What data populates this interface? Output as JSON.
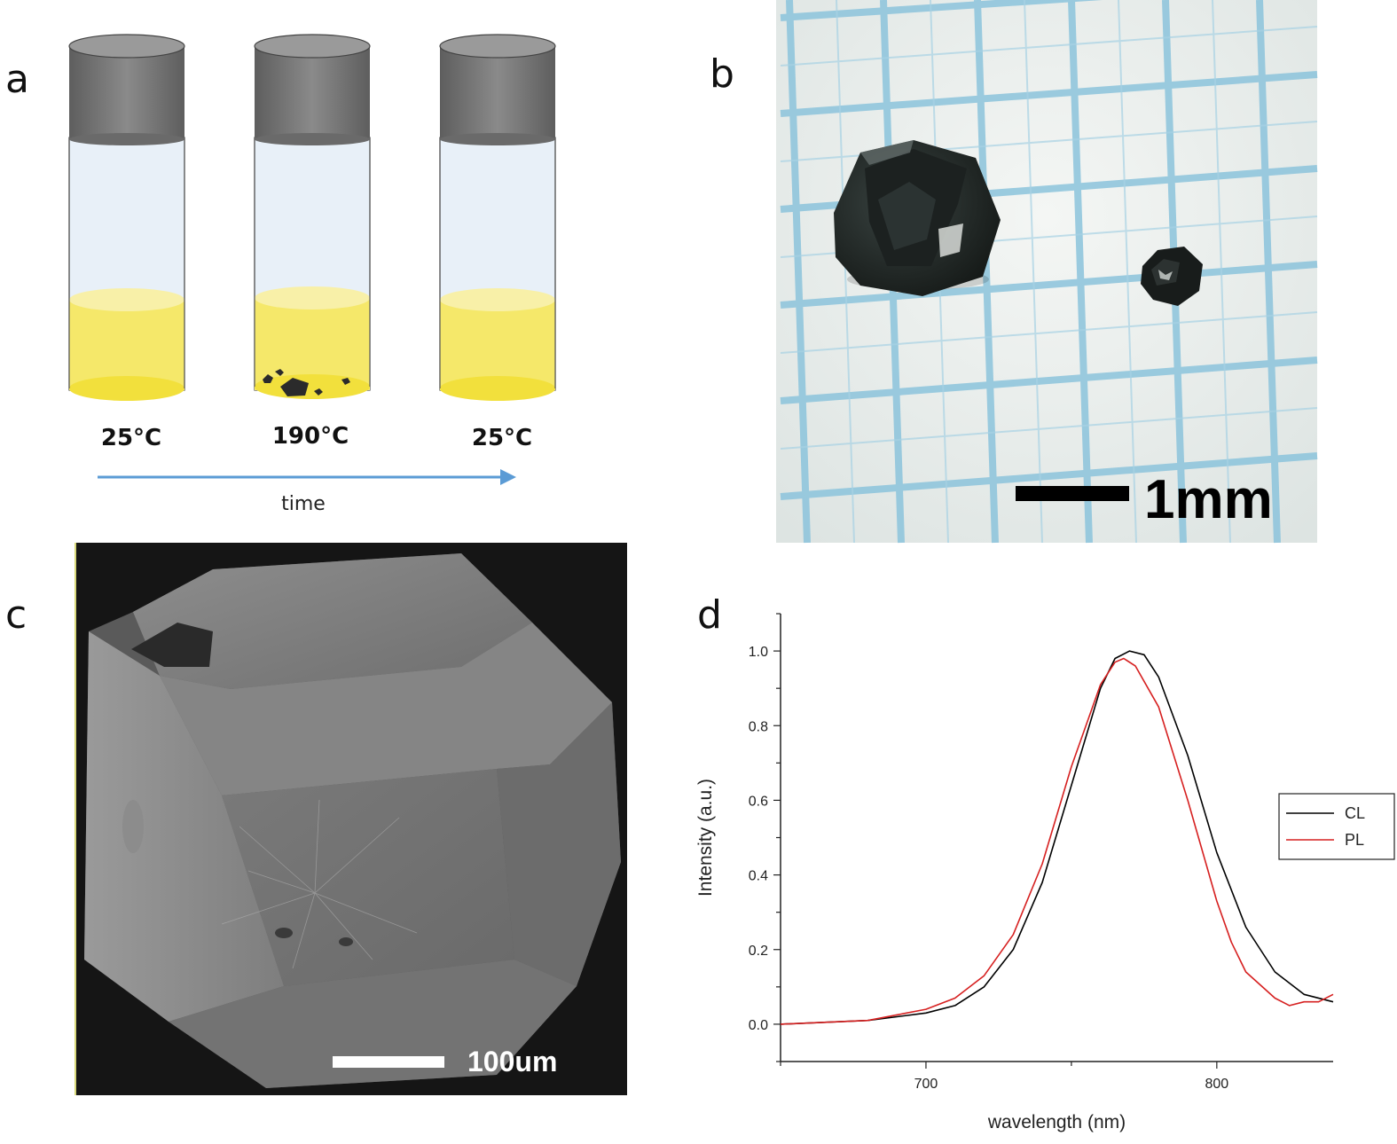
{
  "panels": {
    "a": {
      "letter": "a",
      "vials": [
        {
          "temperature": "25°C"
        },
        {
          "temperature": "190°C"
        },
        {
          "temperature": "25°C"
        }
      ],
      "arrow_label": "time",
      "colors": {
        "cap": "#7a7a7a",
        "glass": "#e8f0f8",
        "liquid": "#f5e86a",
        "crystal": "#2b2b2b",
        "arrow": "#5b9bd5"
      }
    },
    "b": {
      "letter": "b",
      "scale_bar_label": "1mm",
      "colors": {
        "paper": "#eef2f2",
        "grid": "#8cc4dc",
        "crystal": "#1e2321"
      }
    },
    "c": {
      "letter": "c",
      "scale_bar_label": "100um",
      "colors": {
        "background": "#151515",
        "crystal": "#7f7f7f"
      }
    },
    "d": {
      "letter": "d"
    }
  },
  "chart_data": {
    "type": "line",
    "xlabel": "wavelength (nm)",
    "ylabel": "Intensity (a.u.)",
    "xlim": [
      650,
      840
    ],
    "ylim": [
      -0.1,
      1.1
    ],
    "x_ticks": [
      700,
      800
    ],
    "y_ticks": [
      0.0,
      0.2,
      0.4,
      0.6,
      0.8,
      1.0
    ],
    "legend_position": "right",
    "grid": false,
    "series": [
      {
        "name": "CL",
        "color": "#000000",
        "x": [
          650,
          680,
          700,
          710,
          720,
          730,
          740,
          750,
          760,
          765,
          770,
          775,
          780,
          790,
          800,
          810,
          820,
          830,
          840
        ],
        "y": [
          0.0,
          0.01,
          0.03,
          0.05,
          0.1,
          0.2,
          0.38,
          0.64,
          0.9,
          0.98,
          1.0,
          0.99,
          0.93,
          0.72,
          0.46,
          0.26,
          0.14,
          0.08,
          0.06
        ]
      },
      {
        "name": "PL",
        "color": "#d62020",
        "x": [
          650,
          680,
          700,
          710,
          720,
          730,
          740,
          750,
          760,
          765,
          768,
          772,
          780,
          790,
          800,
          805,
          810,
          820,
          825,
          830,
          835,
          840
        ],
        "y": [
          0.0,
          0.01,
          0.04,
          0.07,
          0.13,
          0.24,
          0.43,
          0.69,
          0.91,
          0.97,
          0.98,
          0.96,
          0.85,
          0.6,
          0.33,
          0.22,
          0.14,
          0.07,
          0.05,
          0.06,
          0.06,
          0.08
        ]
      }
    ]
  }
}
